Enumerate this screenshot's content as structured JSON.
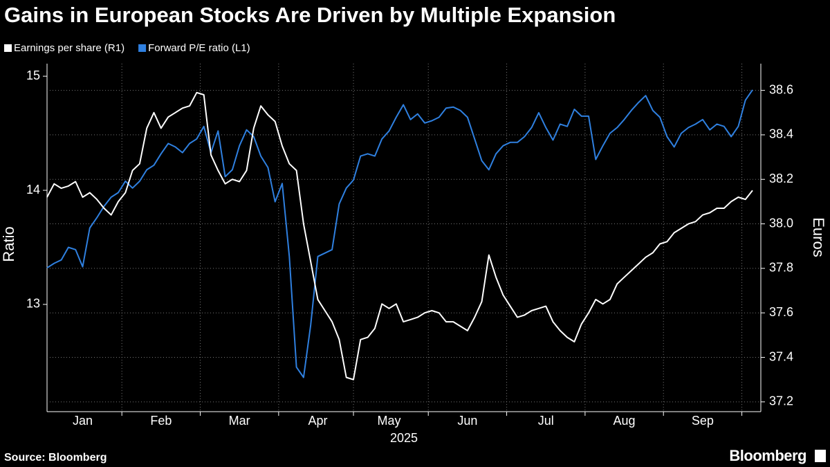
{
  "chart_data": {
    "type": "line",
    "title": "Gains in European Stocks Are Driven by Multiple Expansion",
    "xlabel": "2025",
    "ylabel": "Ratio",
    "y2label": "Euros",
    "source": "Source: Bloomberg",
    "brand": "Bloomberg",
    "grid": true,
    "categories": [
      null,
      null,
      null,
      null,
      null,
      "Jan",
      null,
      null,
      null,
      null,
      null,
      null,
      null,
      null,
      null,
      null,
      "Feb",
      null,
      null,
      null,
      null,
      null,
      null,
      null,
      null,
      null,
      null,
      "Mar",
      null,
      null,
      null,
      null,
      null,
      null,
      null,
      null,
      null,
      null,
      "Apr",
      null,
      null,
      null,
      null,
      null,
      null,
      null,
      null,
      null,
      "May",
      null,
      null,
      null,
      null,
      null,
      null,
      null,
      null,
      null,
      null,
      "Jun",
      null,
      null,
      null,
      null,
      null,
      null,
      null,
      null,
      null,
      null,
      "Jul",
      null,
      null,
      null,
      null,
      null,
      null,
      null,
      null,
      null,
      null,
      "Aug",
      null,
      null,
      null,
      null,
      null,
      null,
      null,
      null,
      null,
      null,
      "Sep",
      null,
      null,
      null,
      null,
      null,
      null,
      null
    ],
    "series": [
      {
        "name": "Earnings per share (R1)",
        "color": "#ffffff",
        "axis": "y2",
        "values": [
          38.12,
          38.18,
          38.16,
          38.17,
          38.19,
          38.12,
          38.14,
          38.11,
          38.07,
          38.04,
          38.1,
          38.14,
          38.24,
          38.27,
          38.43,
          38.5,
          38.43,
          38.48,
          38.5,
          38.52,
          38.53,
          38.59,
          38.58,
          38.31,
          38.24,
          38.18,
          38.2,
          38.19,
          38.24,
          38.43,
          38.53,
          38.49,
          38.46,
          38.35,
          38.27,
          38.24,
          38.0,
          37.83,
          37.66,
          37.61,
          37.56,
          37.48,
          37.31,
          37.3,
          37.48,
          37.49,
          37.53,
          37.64,
          37.62,
          37.64,
          37.56,
          37.57,
          37.58,
          37.6,
          37.61,
          37.6,
          37.56,
          37.56,
          37.54,
          37.52,
          37.58,
          37.65,
          37.86,
          37.76,
          37.68,
          37.63,
          37.58,
          37.59,
          37.61,
          37.62,
          37.63,
          37.56,
          37.52,
          37.49,
          37.47,
          37.55,
          37.6,
          37.66,
          37.64,
          37.66,
          37.73,
          37.76,
          37.79,
          37.82,
          37.85,
          37.87,
          37.91,
          37.92,
          37.96,
          37.98,
          38.0,
          38.01,
          38.04,
          38.05,
          38.07,
          38.07,
          38.1,
          38.12,
          38.11,
          38.15
        ]
      },
      {
        "name": "Forward P/E ratio (L1)",
        "color": "#2f80e0",
        "values": [
          13.32,
          13.36,
          13.39,
          13.5,
          13.48,
          13.33,
          13.67,
          13.76,
          13.86,
          13.94,
          13.98,
          14.08,
          14.02,
          14.08,
          14.18,
          14.22,
          14.32,
          14.41,
          14.38,
          14.33,
          14.41,
          14.45,
          14.56,
          14.33,
          14.52,
          14.12,
          14.18,
          14.39,
          14.53,
          14.47,
          14.3,
          14.2,
          13.9,
          14.06,
          13.42,
          12.45,
          12.36,
          12.82,
          13.42,
          13.45,
          13.48,
          13.88,
          14.02,
          14.09,
          14.3,
          14.32,
          14.3,
          14.45,
          14.52,
          14.64,
          14.75,
          14.62,
          14.67,
          14.59,
          14.61,
          14.64,
          14.72,
          14.73,
          14.7,
          14.64,
          14.45,
          14.26,
          14.18,
          14.32,
          14.39,
          14.42,
          14.42,
          14.47,
          14.55,
          14.68,
          14.55,
          14.44,
          14.58,
          14.56,
          14.71,
          14.65,
          14.65,
          14.27,
          14.39,
          14.5,
          14.55,
          14.62,
          14.7,
          14.77,
          14.83,
          14.7,
          14.64,
          14.47,
          14.38,
          14.5,
          14.55,
          14.58,
          14.62,
          14.53,
          14.58,
          14.56,
          14.47,
          14.56,
          14.79,
          14.88
        ]
      }
    ],
    "ylim": [
      12.06,
      15.11
    ],
    "yticks": [
      13,
      14,
      15
    ],
    "y2lim": [
      37.156,
      38.72
    ],
    "y2ticks": [
      37.2,
      37.4,
      37.6,
      37.8,
      {
        "value": 38,
        "label": "38.0"
      },
      38.2,
      38.4,
      38.6
    ]
  }
}
